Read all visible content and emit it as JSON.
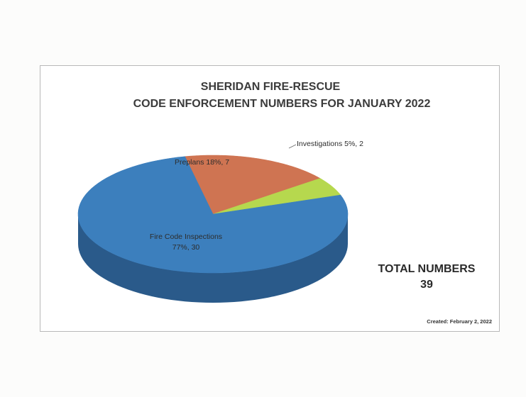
{
  "chart_data": {
    "type": "pie",
    "title": "SHERIDAN FIRE-RESCUE",
    "subtitle": "CODE ENFORCEMENT NUMBERS FOR JANUARY 2022",
    "slices": [
      {
        "name": "Fire Code Inspections",
        "value": 30,
        "percent": 77,
        "color": "#3c7fbd",
        "side_color": "#2a5a8a"
      },
      {
        "name": "Preplans",
        "value": 7,
        "percent": 18,
        "color": "#cf7452",
        "side_color": "#9a523a"
      },
      {
        "name": "Investigations",
        "value": 2,
        "percent": 5,
        "color": "#b6d84e",
        "side_color": "#86a036"
      }
    ],
    "labels": {
      "fire_line1": "Fire Code Inspections",
      "fire_line2": "77%, 30",
      "preplans": "Preplans   18%, 7",
      "investigations": "Investigations  5%, 2"
    },
    "total_label": "TOTAL NUMBERS",
    "total_value": "39",
    "created": "Created:  February 2, 2022"
  }
}
